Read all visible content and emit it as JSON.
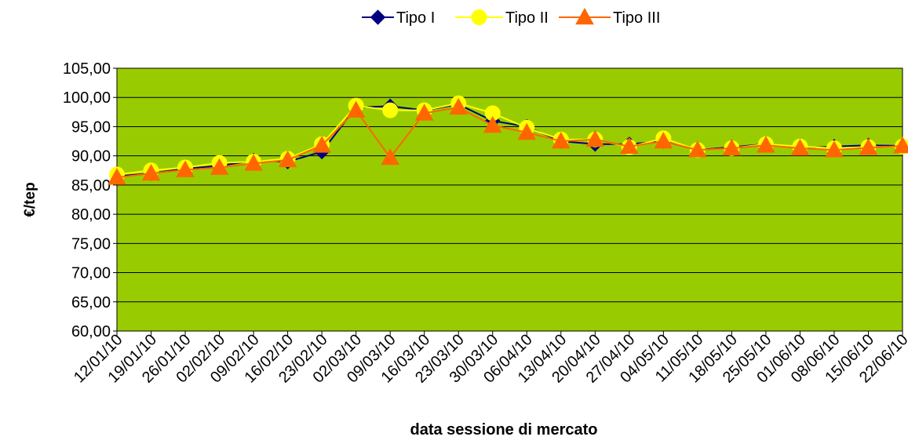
{
  "chart_data": {
    "type": "line",
    "title": "",
    "xlabel": "data sessione di mercato",
    "ylabel": "€/tep",
    "ylim": [
      60,
      105
    ],
    "yticks": [
      "60,00",
      "65,00",
      "70,00",
      "75,00",
      "80,00",
      "85,00",
      "90,00",
      "95,00",
      "100,00",
      "105,00"
    ],
    "grid": true,
    "legend_position": "top",
    "plot_background": "#99CC00",
    "x_tick_labels": [
      "12/01/10",
      "19/01/10",
      "26/01/10",
      "02/02/10",
      "09/02/10",
      "16/02/10",
      "23/02/10",
      "02/03/10",
      "09/03/10",
      "16/03/10",
      "23/03/10",
      "30/03/10",
      "06/04/10",
      "13/04/10",
      "20/04/10",
      "27/04/10",
      "04/05/10",
      "11/05/10",
      "18/05/10",
      "25/05/10",
      "01/06/10",
      "08/06/10",
      "15/06/10",
      "22/06/10"
    ],
    "series": [
      {
        "name": "Tipo I",
        "color": "#000080",
        "marker": "diamond",
        "values": [
          86.5,
          87.0,
          87.8,
          88.3,
          89.2,
          89.0,
          90.7,
          98.3,
          98.5,
          97.8,
          98.8,
          96.0,
          95.0,
          92.5,
          92.0,
          92.0,
          92.5,
          91.0,
          91.5,
          92.0,
          91.3,
          91.6,
          91.8,
          91.7
        ]
      },
      {
        "name": "Tipo II",
        "color": "#FFFF00",
        "marker": "circle",
        "values": [
          86.8,
          87.5,
          88.0,
          88.8,
          89.0,
          89.5,
          92.0,
          98.6,
          97.8,
          97.8,
          99.0,
          97.3,
          94.8,
          92.8,
          92.8,
          91.5,
          93.0,
          91.0,
          91.3,
          92.0,
          91.6,
          91.3,
          91.5,
          91.6
        ]
      },
      {
        "name": "Tipo III",
        "color": "#FF6600",
        "marker": "triangle",
        "values": [
          86.3,
          87.0,
          87.6,
          88.0,
          88.7,
          89.3,
          91.8,
          97.8,
          89.7,
          97.3,
          98.3,
          95.2,
          94.0,
          92.5,
          92.8,
          91.6,
          92.5,
          91.0,
          91.3,
          91.8,
          91.3,
          91.0,
          91.4,
          91.7
        ]
      }
    ]
  }
}
